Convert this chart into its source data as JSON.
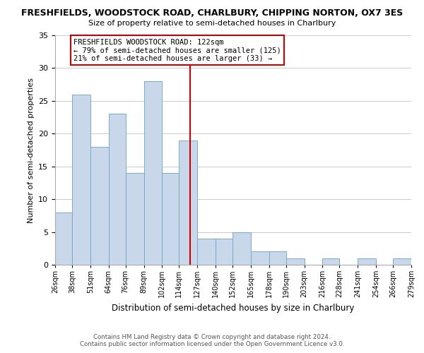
{
  "title": "FRESHFIELDS, WOODSTOCK ROAD, CHARLBURY, CHIPPING NORTON, OX7 3ES",
  "subtitle": "Size of property relative to semi-detached houses in Charlbury",
  "xlabel": "Distribution of semi-detached houses by size in Charlbury",
  "ylabel": "Number of semi-detached properties",
  "bin_edges": [
    26,
    38,
    51,
    64,
    76,
    89,
    102,
    114,
    127,
    140,
    152,
    165,
    178,
    190,
    203,
    216,
    228,
    241,
    254,
    266,
    279
  ],
  "bin_labels": [
    "26sqm",
    "38sqm",
    "51sqm",
    "64sqm",
    "76sqm",
    "89sqm",
    "102sqm",
    "114sqm",
    "127sqm",
    "140sqm",
    "152sqm",
    "165sqm",
    "178sqm",
    "190sqm",
    "203sqm",
    "216sqm",
    "228sqm",
    "241sqm",
    "254sqm",
    "266sqm",
    "279sqm"
  ],
  "counts": [
    8,
    26,
    18,
    23,
    14,
    28,
    14,
    19,
    4,
    4,
    5,
    2,
    2,
    1,
    0,
    1,
    0,
    1,
    0,
    1
  ],
  "bar_color": "#c8d8ea",
  "bar_edgecolor": "#7aaac8",
  "vline_x": 122,
  "vline_color": "#cc0000",
  "annotation_title": "FRESHFIELDS WOODSTOCK ROAD: 122sqm",
  "annotation_line1": "← 79% of semi-detached houses are smaller (125)",
  "annotation_line2": "21% of semi-detached houses are larger (33) →",
  "annotation_box_edgecolor": "#cc0000",
  "ylim": [
    0,
    35
  ],
  "yticks": [
    0,
    5,
    10,
    15,
    20,
    25,
    30,
    35
  ],
  "footer_line1": "Contains HM Land Registry data © Crown copyright and database right 2024.",
  "footer_line2": "Contains public sector information licensed under the Open Government Licence v3.0.",
  "background_color": "#ffffff",
  "grid_color": "#cccccc"
}
